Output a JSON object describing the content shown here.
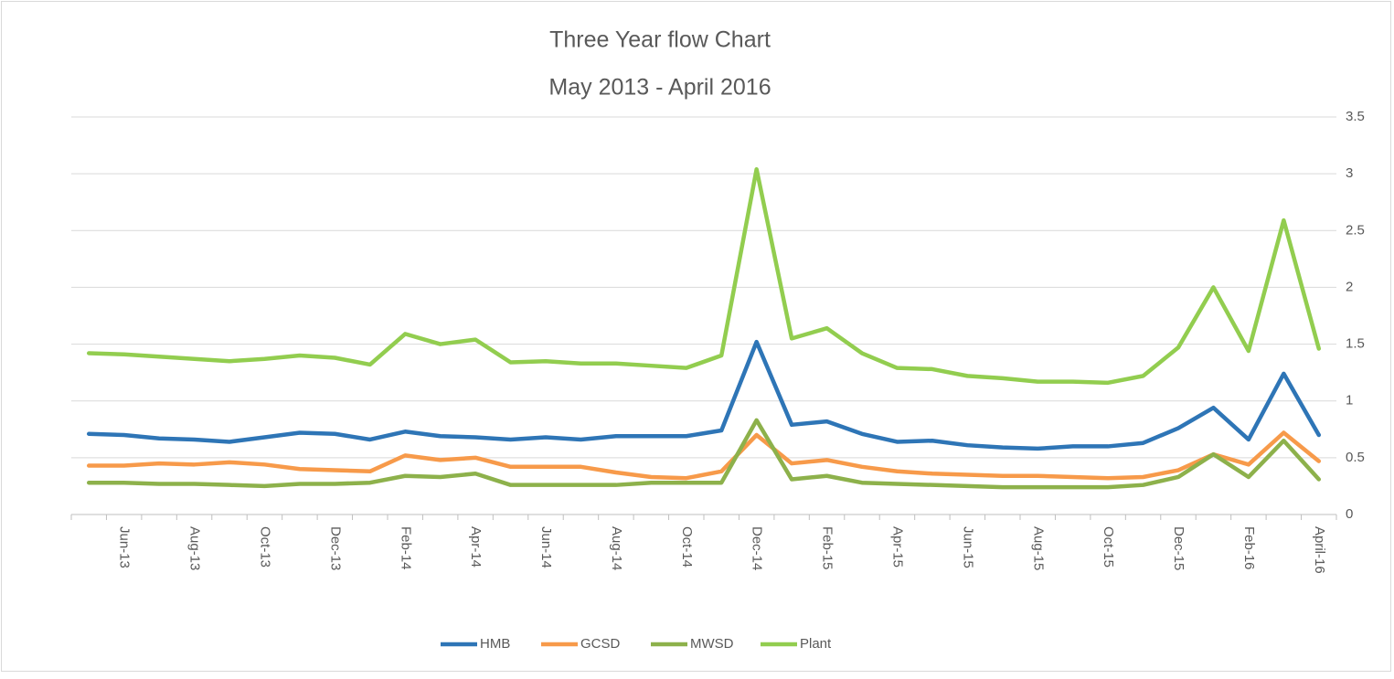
{
  "chart_data": {
    "type": "line",
    "title": "Three Year flow Chart",
    "subtitle": "May 2013 - April 2016",
    "categories": [
      null,
      "Jun-13",
      null,
      "Aug-13",
      null,
      "Oct-13",
      null,
      "Dec-13",
      null,
      "Feb-14",
      null,
      "Apr-14",
      null,
      "Jun-14",
      null,
      "Aug-14",
      null,
      "Oct-14",
      null,
      "Dec-14",
      null,
      "Feb-15",
      null,
      "Apr-15",
      null,
      "Jun-15",
      null,
      "Aug-15",
      null,
      "Oct-15",
      null,
      "Dec-15",
      null,
      "Feb-16",
      null,
      "April-16"
    ],
    "series": [
      {
        "name": "HMB",
        "color": "#2e75b6",
        "values": [
          0.71,
          0.7,
          0.67,
          0.66,
          0.64,
          0.68,
          0.72,
          0.71,
          0.66,
          0.73,
          0.69,
          0.68,
          0.66,
          0.68,
          0.66,
          0.69,
          0.69,
          0.69,
          0.74,
          1.52,
          0.79,
          0.82,
          0.71,
          0.64,
          0.65,
          0.61,
          0.59,
          0.58,
          0.6,
          0.6,
          0.63,
          0.76,
          0.94,
          0.66,
          1.24,
          0.7
        ]
      },
      {
        "name": "GCSD",
        "color": "#f79a4a",
        "values": [
          0.43,
          0.43,
          0.45,
          0.44,
          0.46,
          0.44,
          0.4,
          0.39,
          0.38,
          0.52,
          0.48,
          0.5,
          0.42,
          0.42,
          0.42,
          0.37,
          0.33,
          0.32,
          0.38,
          0.7,
          0.45,
          0.48,
          0.42,
          0.38,
          0.36,
          0.35,
          0.34,
          0.34,
          0.33,
          0.32,
          0.33,
          0.39,
          0.53,
          0.44,
          0.72,
          0.47
        ]
      },
      {
        "name": "MWSD",
        "color": "#8db14b",
        "values": [
          0.28,
          0.28,
          0.27,
          0.27,
          0.26,
          0.25,
          0.27,
          0.27,
          0.28,
          0.34,
          0.33,
          0.36,
          0.26,
          0.26,
          0.26,
          0.26,
          0.28,
          0.28,
          0.28,
          0.83,
          0.31,
          0.34,
          0.28,
          0.27,
          0.26,
          0.25,
          0.24,
          0.24,
          0.24,
          0.24,
          0.26,
          0.33,
          0.53,
          0.33,
          0.65,
          0.31
        ]
      },
      {
        "name": "Plant",
        "color": "#92cd4f",
        "values": [
          1.42,
          1.41,
          1.39,
          1.37,
          1.35,
          1.37,
          1.4,
          1.38,
          1.32,
          1.59,
          1.5,
          1.54,
          1.34,
          1.35,
          1.33,
          1.33,
          1.31,
          1.29,
          1.4,
          3.04,
          1.55,
          1.64,
          1.42,
          1.29,
          1.28,
          1.22,
          1.2,
          1.17,
          1.17,
          1.16,
          1.22,
          1.47,
          2.0,
          1.44,
          2.59,
          1.46
        ]
      }
    ],
    "ylim": [
      0,
      3.5
    ],
    "yticks": [
      0,
      0.5,
      1,
      1.5,
      2,
      2.5,
      3,
      3.5
    ],
    "grid": true,
    "legend": "bottom"
  }
}
